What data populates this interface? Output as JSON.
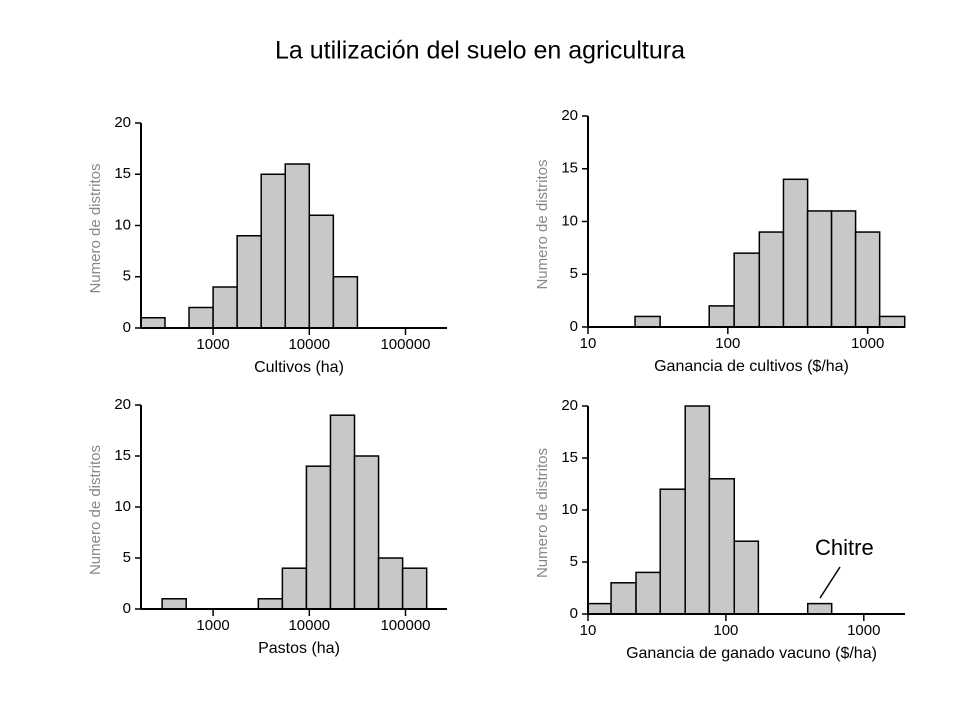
{
  "title": "La utilización del suelo en agricultura",
  "chart_data": [
    {
      "type": "histogram",
      "x_label": "Cultivos (ha)",
      "y_label": "Numero de distritos",
      "bins": [
        178,
        316,
        562,
        1000,
        1778,
        3162,
        5623,
        10000,
        17783,
        31623
      ],
      "counts": [
        1,
        0,
        2,
        4,
        9,
        15,
        16,
        11,
        5
      ],
      "color": "#c8c8c8",
      "x_log": true,
      "xlim": [
        178,
        270000
      ],
      "xticks": [
        1000,
        10000,
        100000
      ],
      "ylim": [
        0,
        20
      ],
      "yticks": [
        0,
        5,
        10,
        15,
        20
      ]
    },
    {
      "type": "histogram",
      "x_label": "Ganancia de cultivos ($/ha)",
      "y_label": "Numero de distritos",
      "bins": [
        21.7,
        32.8,
        49.3,
        73.6,
        111,
        168,
        250,
        372,
        552,
        820,
        1219,
        1841
      ],
      "counts": [
        1,
        0,
        0,
        2,
        7,
        9,
        14,
        11,
        11,
        9,
        1
      ],
      "color": "#c8c8c8",
      "x_log": true,
      "xlim": [
        10,
        1850
      ],
      "xticks": [
        10,
        100,
        1000
      ],
      "ylim": [
        0,
        20
      ],
      "yticks": [
        0,
        5,
        10,
        15,
        20
      ]
    },
    {
      "type": "histogram",
      "x_label": "Pastos (ha)",
      "y_label": "Numero de distritos",
      "bins": [
        295,
        525,
        933,
        1660,
        2951,
        5248,
        9333,
        16596,
        29512,
        52481,
        93325,
        165959
      ],
      "counts": [
        1,
        0,
        0,
        0,
        1,
        4,
        14,
        19,
        15,
        5,
        4
      ],
      "color": "#c8c8c8",
      "x_log": true,
      "xlim": [
        178,
        270000
      ],
      "xticks": [
        1000,
        10000,
        100000
      ],
      "ylim": [
        0,
        20
      ],
      "yticks": [
        0,
        5,
        10,
        15,
        20
      ]
    },
    {
      "type": "histogram",
      "x_label": "Ganancia de ganado vacuno ($/ha)",
      "y_label": "Numero de distritos",
      "bins": [
        10,
        14.7,
        22.3,
        33.4,
        50.7,
        75.9,
        115,
        172,
        262,
        392,
        585
      ],
      "counts": [
        1,
        3,
        4,
        12,
        20,
        13,
        7,
        0,
        0,
        1
      ],
      "color": "#c8c8c8",
      "x_log": true,
      "annotation": "Chitre",
      "xlim": [
        10,
        1990
      ],
      "xticks": [
        10,
        100,
        1000
      ],
      "ylim": [
        0,
        20
      ],
      "yticks": [
        0,
        5,
        10,
        15,
        20
      ]
    }
  ]
}
